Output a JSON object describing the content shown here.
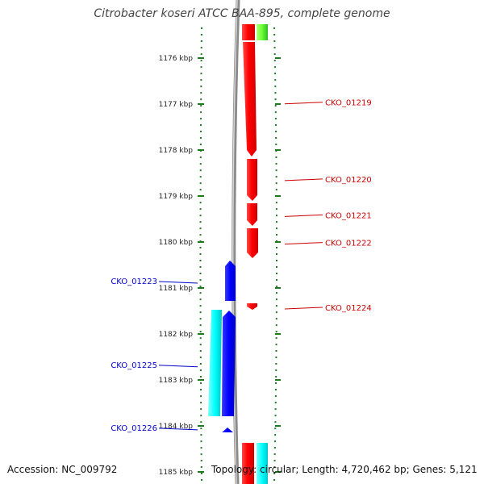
{
  "title": "Citrobacter koseri ATCC BAA-895, complete genome",
  "ruler": {
    "unit": "kbp",
    "ticks": [
      {
        "kbp": 1176,
        "label": "1176 kbp"
      },
      {
        "kbp": 1177,
        "label": "1177 kbp"
      },
      {
        "kbp": 1178,
        "label": "1178 kbp"
      },
      {
        "kbp": 1179,
        "label": "1179 kbp"
      },
      {
        "kbp": 1180,
        "label": "1180 kbp"
      },
      {
        "kbp": 1181,
        "label": "1181 kbp"
      },
      {
        "kbp": 1182,
        "label": "1182 kbp"
      },
      {
        "kbp": 1183,
        "label": "1183 kbp"
      },
      {
        "kbp": 1184,
        "label": "1184 kbp"
      },
      {
        "kbp": 1185,
        "label": "1185 kbp"
      }
    ]
  },
  "forward_labels": [
    {
      "id": "CKO_01219",
      "kbp": 1176.96
    },
    {
      "id": "CKO_01220",
      "kbp": 1178.63
    },
    {
      "id": "CKO_01221",
      "kbp": 1179.41
    },
    {
      "id": "CKO_01222",
      "kbp": 1180.01
    },
    {
      "id": "CKO_01224",
      "kbp": 1181.42
    }
  ],
  "reverse_labels": [
    {
      "id": "CKO_01223",
      "kbp": 1180.86
    },
    {
      "id": "CKO_01225",
      "kbp": 1182.68
    },
    {
      "id": "CKO_01226",
      "kbp": 1184.05
    }
  ],
  "colors": {
    "forward_cds": "#ff0000",
    "reverse_cds": "#0000ff",
    "reverse_gene": "#00ffff",
    "forward_gene": "#66ff33",
    "backbone": "#888888",
    "tick": "#1f7a1f",
    "forward_label": "#cc0000",
    "reverse_label": "#0000cc"
  },
  "accession": "Accession: NC_009792",
  "topology": "Topology: circular; Length: 4,720,462 bp; Genes: 5,121"
}
